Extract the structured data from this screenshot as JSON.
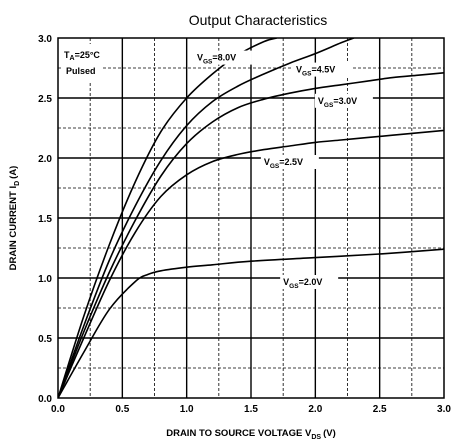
{
  "chart_data": {
    "type": "line",
    "title": "Output Characteristics",
    "xlabel": "DRAIN TO SOURCE VOLTAGE V",
    "xlabel_sub": "DS",
    "xlabel_unit": "(V)",
    "ylabel": "DRAIN CURRENT I",
    "ylabel_sub": "D",
    "ylabel_unit": "(A)",
    "xlim": [
      0,
      3.0
    ],
    "ylim": [
      0,
      3.0
    ],
    "xticks": [
      "0.0",
      "0.5",
      "1.0",
      "1.5",
      "2.0",
      "2.5",
      "3.0"
    ],
    "yticks": [
      "0.0",
      "0.5",
      "1.0",
      "1.5",
      "2.0",
      "2.5",
      "3.0"
    ],
    "grid": true,
    "annotation": {
      "line1_main": "T",
      "line1_sub": "A",
      "line1_rest": "=25°C",
      "line2": "Pulsed"
    },
    "series": [
      {
        "name": "V",
        "sub": "GS",
        "rest": "=8.0V",
        "x": [
          0,
          0.2,
          0.4,
          0.6,
          0.8,
          1.0,
          1.2,
          1.4,
          1.6,
          1.7
        ],
        "y": [
          0,
          0.68,
          1.28,
          1.8,
          2.22,
          2.5,
          2.7,
          2.86,
          2.97,
          3.0
        ]
      },
      {
        "name": "V",
        "sub": "GS",
        "rest": "=4.5V",
        "x": [
          0,
          0.2,
          0.4,
          0.6,
          0.8,
          1.0,
          1.2,
          1.4,
          1.6,
          1.8,
          2.0,
          2.2,
          2.3
        ],
        "y": [
          0,
          0.6,
          1.15,
          1.6,
          1.98,
          2.27,
          2.47,
          2.6,
          2.7,
          2.79,
          2.87,
          2.96,
          3.0
        ]
      },
      {
        "name": "V",
        "sub": "GS",
        "rest": "=3.0V",
        "x": [
          0,
          0.2,
          0.4,
          0.6,
          0.8,
          1.0,
          1.2,
          1.4,
          1.6,
          1.8,
          2.0,
          2.2,
          2.4,
          2.6,
          2.8,
          3.0
        ],
        "y": [
          0,
          0.55,
          1.05,
          1.48,
          1.85,
          2.12,
          2.3,
          2.42,
          2.49,
          2.54,
          2.58,
          2.61,
          2.64,
          2.67,
          2.69,
          2.71
        ]
      },
      {
        "name": "V",
        "sub": "GS",
        "rest": "=2.5V",
        "x": [
          0,
          0.2,
          0.4,
          0.6,
          0.8,
          1.0,
          1.2,
          1.4,
          1.6,
          1.8,
          2.0,
          2.2,
          2.4,
          2.6,
          2.8,
          3.0
        ],
        "y": [
          0,
          0.5,
          0.98,
          1.38,
          1.68,
          1.86,
          1.97,
          2.03,
          2.07,
          2.1,
          2.13,
          2.15,
          2.17,
          2.19,
          2.21,
          2.23
        ]
      },
      {
        "name": "V",
        "sub": "GS",
        "rest": "=2.0V",
        "x": [
          0,
          0.2,
          0.4,
          0.6,
          0.7,
          0.8,
          1.0,
          1.2,
          1.5,
          2.0,
          2.5,
          3.0
        ],
        "y": [
          0,
          0.38,
          0.74,
          0.97,
          1.03,
          1.06,
          1.09,
          1.11,
          1.14,
          1.17,
          1.2,
          1.24
        ]
      }
    ],
    "label_positions_data": [
      {
        "x": 1.08,
        "y": 2.82
      },
      {
        "x": 1.85,
        "y": 2.72
      },
      {
        "x": 2.02,
        "y": 2.46
      },
      {
        "x": 1.6,
        "y": 1.95
      },
      {
        "x": 1.75,
        "y": 0.95
      }
    ]
  }
}
